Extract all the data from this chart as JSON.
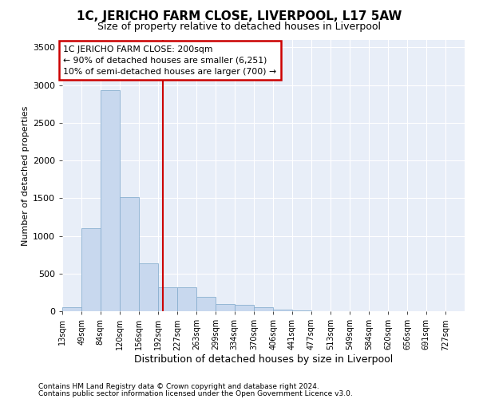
{
  "title": "1C, JERICHO FARM CLOSE, LIVERPOOL, L17 5AW",
  "subtitle": "Size of property relative to detached houses in Liverpool",
  "xlabel": "Distribution of detached houses by size in Liverpool",
  "ylabel": "Number of detached properties",
  "footnote1": "Contains HM Land Registry data © Crown copyright and database right 2024.",
  "footnote2": "Contains public sector information licensed under the Open Government Licence v3.0.",
  "annotation_line1": "1C JERICHO FARM CLOSE: 200sqm",
  "annotation_line2": "← 90% of detached houses are smaller (6,251)",
  "annotation_line3": "10% of semi-detached houses are larger (700) →",
  "property_size": 200,
  "bar_color": "#c8d8ee",
  "bar_edge_color": "#8ab0d0",
  "vline_color": "#cc0000",
  "background_color": "#e8eef8",
  "grid_color": "#ffffff",
  "bin_labels": [
    "13sqm",
    "49sqm",
    "84sqm",
    "120sqm",
    "156sqm",
    "192sqm",
    "227sqm",
    "263sqm",
    "299sqm",
    "334sqm",
    "370sqm",
    "406sqm",
    "441sqm",
    "477sqm",
    "513sqm",
    "549sqm",
    "584sqm",
    "620sqm",
    "656sqm",
    "691sqm",
    "727sqm"
  ],
  "bin_edges": [
    13,
    49,
    84,
    120,
    156,
    192,
    227,
    263,
    299,
    334,
    370,
    406,
    441,
    477,
    513,
    549,
    584,
    620,
    656,
    691,
    727
  ],
  "bar_heights": [
    55,
    1100,
    2930,
    1510,
    640,
    320,
    320,
    190,
    100,
    90,
    50,
    20,
    8,
    4,
    2,
    1,
    0,
    0,
    0,
    0,
    0
  ],
  "ylim": [
    0,
    3600
  ],
  "yticks": [
    0,
    500,
    1000,
    1500,
    2000,
    2500,
    3000,
    3500
  ]
}
